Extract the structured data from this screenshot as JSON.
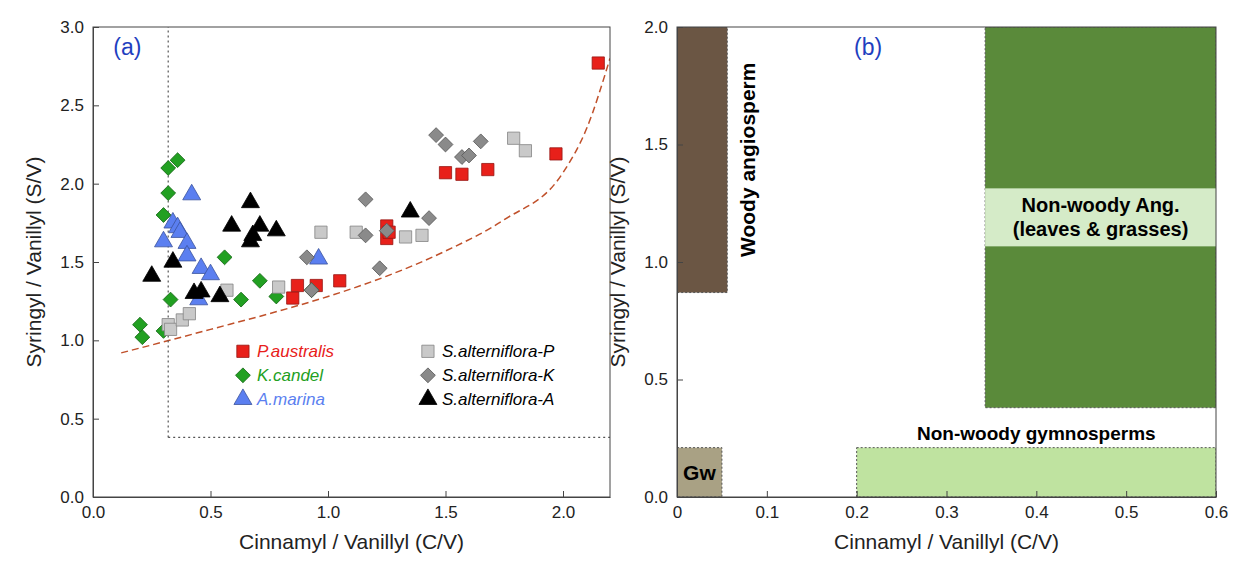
{
  "chart_data": [
    {
      "type": "scatter",
      "title": "(a)",
      "xlabel": "Cinnamyl / Vanillyl (C/V)",
      "ylabel": "Syringyl / Vanillyl (S/V)",
      "xlim": [
        0,
        2.2
      ],
      "ylim": [
        0,
        3
      ],
      "xticks": [
        {
          "value": 0,
          "label": "0.0"
        },
        0.5,
        {
          "value": 1,
          "label": "1.0"
        },
        1.5,
        {
          "value": 2,
          "label": "2.0"
        }
      ],
      "yticks": [
        {
          "value": 0,
          "label": "0.0"
        },
        0.5,
        {
          "value": 1,
          "label": "1.0"
        },
        1.5,
        {
          "value": 2,
          "label": "2.0"
        },
        2.5,
        {
          "value": 3,
          "label": "3.0"
        }
      ],
      "legend": "lower right",
      "series": [
        {
          "name": "P.australis",
          "color": "#e8201a",
          "marker": "square",
          "x": [
            0.85,
            0.87,
            0.95,
            1.05,
            1.25,
            1.25,
            1.26,
            1.5,
            1.57,
            1.68,
            1.97,
            2.15
          ],
          "values": [
            1.27,
            1.35,
            1.35,
            1.38,
            1.65,
            1.73,
            1.69,
            2.07,
            2.06,
            2.09,
            2.19,
            2.77
          ]
        },
        {
          "name": "K.candel",
          "color": "#22a022",
          "marker": "diamond",
          "x": [
            0.2,
            0.21,
            0.3,
            0.3,
            0.32,
            0.32,
            0.36,
            0.33,
            0.56,
            0.63,
            0.71,
            0.78,
            0.93
          ],
          "values": [
            1.1,
            1.02,
            1.06,
            1.8,
            1.94,
            2.1,
            2.15,
            1.26,
            1.53,
            1.26,
            1.38,
            1.28,
            1.32
          ]
        },
        {
          "name": "A.marina",
          "color": "#5b7ff0",
          "marker": "triangle",
          "x": [
            0.3,
            0.34,
            0.36,
            0.37,
            0.4,
            0.4,
            0.42,
            0.46,
            0.5,
            0.45,
            0.96
          ],
          "values": [
            1.63,
            1.75,
            1.72,
            1.69,
            1.62,
            1.54,
            1.93,
            1.46,
            1.42,
            1.26,
            1.52
          ]
        },
        {
          "name": "S.alterniflora-P",
          "color": "#c9c9c9",
          "marker": "square",
          "x": [
            0.32,
            0.33,
            0.38,
            0.41,
            0.57,
            0.79,
            0.97,
            1.12,
            1.33,
            1.4,
            1.79,
            1.84
          ],
          "values": [
            1.1,
            1.07,
            1.13,
            1.17,
            1.32,
            1.34,
            1.69,
            1.69,
            1.66,
            1.67,
            2.29,
            2.21
          ]
        },
        {
          "name": "S.alterniflora-K",
          "color": "#8a8a8a",
          "marker": "diamond",
          "x": [
            0.93,
            0.91,
            1.16,
            1.16,
            1.22,
            1.25,
            1.43,
            1.46,
            1.5,
            1.57,
            1.6,
            1.65
          ],
          "values": [
            1.32,
            1.53,
            1.9,
            1.67,
            1.46,
            1.7,
            1.78,
            2.31,
            2.25,
            2.17,
            2.18,
            2.27
          ]
        },
        {
          "name": "S.alterniflora-A",
          "color": "#000000",
          "marker": "triangle",
          "x": [
            0.25,
            0.34,
            0.43,
            0.46,
            0.54,
            0.59,
            0.67,
            0.67,
            0.68,
            0.71,
            0.78,
            1.35
          ],
          "values": [
            1.41,
            1.5,
            1.3,
            1.31,
            1.28,
            1.73,
            1.88,
            1.63,
            1.67,
            1.73,
            1.7,
            1.82
          ]
        },
        {
          "type": "line",
          "line_style": "dashed",
          "color": "#c0502a",
          "x": [
            0.12,
            0.3,
            0.5,
            0.75,
            1.0,
            1.25,
            1.5,
            1.75,
            2.0,
            2.1,
            2.2
          ],
          "values": [
            0.92,
            0.99,
            1.07,
            1.17,
            1.28,
            1.41,
            1.57,
            1.77,
            2.07,
            2.35,
            2.8
          ]
        },
        {
          "type": "line",
          "line_style": "dotted",
          "color": "#555555",
          "x": [
            0.32,
            0.32
          ],
          "values": [
            0.38,
            3
          ]
        },
        {
          "type": "line",
          "line_style": "dotted",
          "color": "#555555",
          "x": [
            0.32,
            2.2
          ],
          "values": [
            0.38,
            0.38
          ]
        }
      ]
    },
    {
      "type": "region",
      "title": "(b)",
      "xlabel": "Cinnamyl / Vanillyl (C/V)",
      "ylabel": "Syringyl / Vanillyl (S/V)",
      "xlim": [
        0,
        0.6
      ],
      "ylim": [
        0,
        2
      ],
      "xticks": [
        0,
        0.1,
        0.2,
        0.3,
        0.4,
        0.5,
        0.6
      ],
      "yticks": [
        {
          "value": 0,
          "label": "0.0"
        },
        0.5,
        {
          "value": 1,
          "label": "1.0"
        },
        1.5,
        {
          "value": 2,
          "label": "2.0"
        }
      ],
      "regions": [
        {
          "label": "Woody angiosperm",
          "color": "#6b5644",
          "x": [
            0,
            0.056
          ],
          "y": [
            0.87,
            2
          ]
        },
        {
          "label": "Gw",
          "color": "#a9a184",
          "x": [
            0,
            0.05
          ],
          "y": [
            0,
            0.21
          ]
        },
        {
          "label": [
            "Non-woody Ang.",
            "(leaves & grasses)"
          ],
          "color": "#5a8a3a",
          "x": [
            0.343,
            0.6
          ],
          "y": [
            0.38,
            2
          ]
        },
        {
          "label": "Non-woody gymnosperms",
          "color": "#bfe3a0",
          "x": [
            0.2,
            0.6
          ],
          "y": [
            0,
            0.21
          ]
        }
      ]
    }
  ]
}
